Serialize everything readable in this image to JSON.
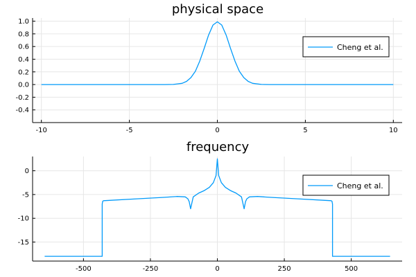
{
  "chart_data": [
    {
      "type": "line",
      "title": "physical space",
      "xlim": [
        -10.5,
        10.5
      ],
      "ylim": [
        -0.6,
        1.05
      ],
      "xticks": [
        -10,
        -5,
        0,
        5,
        10
      ],
      "xtick_labels": [
        "-10",
        "-5",
        "0",
        "5",
        "10"
      ],
      "yticks": [
        -0.4,
        -0.2,
        0.0,
        0.2,
        0.4,
        0.6,
        0.8,
        1.0
      ],
      "ytick_labels": [
        "-0.4",
        "-0.2",
        "0.0",
        "0.2",
        "0.4",
        "0.6",
        "0.8",
        "1.0"
      ],
      "grid": true,
      "legend": {
        "position": "top-right",
        "entries": [
          "Cheng et al."
        ]
      },
      "series": [
        {
          "name": "Cheng et al.",
          "color": "#009AFA",
          "x": [
            -10,
            -3,
            -2.5,
            -2,
            -1.75,
            -1.5,
            -1.25,
            -1,
            -0.75,
            -0.5,
            -0.25,
            0,
            0.25,
            0.5,
            0.75,
            1,
            1.25,
            1.5,
            1.75,
            2,
            2.5,
            3,
            10
          ],
          "y": [
            0,
            0,
            0.002,
            0.02,
            0.05,
            0.11,
            0.21,
            0.37,
            0.57,
            0.78,
            0.94,
            0.99,
            0.94,
            0.78,
            0.57,
            0.37,
            0.21,
            0.11,
            0.05,
            0.02,
            0.002,
            0,
            0
          ]
        }
      ]
    },
    {
      "type": "line",
      "title": "frequency",
      "xlim": [
        -690,
        690
      ],
      "ylim": [
        -19,
        3
      ],
      "xticks": [
        -500,
        -250,
        0,
        250,
        500
      ],
      "xtick_labels": [
        "-500",
        "-250",
        "0",
        "250",
        "500"
      ],
      "yticks": [
        -15,
        -10,
        -5,
        0
      ],
      "ytick_labels": [
        "-15",
        "-10",
        "-5",
        "0"
      ],
      "grid": true,
      "legend": {
        "position": "top-right",
        "entries": [
          "Cheng et al."
        ]
      },
      "series": [
        {
          "name": "Cheng et al.",
          "color": "#009AFA",
          "x": [
            -645,
            -430,
            -430,
            -428,
            -425,
            -300,
            -200,
            -150,
            -120,
            -110,
            -105,
            -100,
            -90,
            -70,
            -50,
            -30,
            -15,
            -5,
            0,
            5,
            15,
            30,
            50,
            70,
            90,
            100,
            105,
            110,
            120,
            150,
            200,
            300,
            425,
            428,
            430,
            430,
            645
          ],
          "y": [
            -18,
            -18,
            -7,
            -6.4,
            -6.3,
            -5.9,
            -5.6,
            -5.4,
            -5.5,
            -5.9,
            -6.5,
            -8,
            -5.5,
            -4.7,
            -4.2,
            -3.5,
            -2.5,
            -1,
            2.5,
            -1,
            -2.5,
            -3.5,
            -4.2,
            -4.7,
            -5.5,
            -8,
            -6.5,
            -5.9,
            -5.5,
            -5.4,
            -5.6,
            -5.9,
            -6.3,
            -6.4,
            -7,
            -18,
            -18
          ]
        }
      ]
    }
  ]
}
